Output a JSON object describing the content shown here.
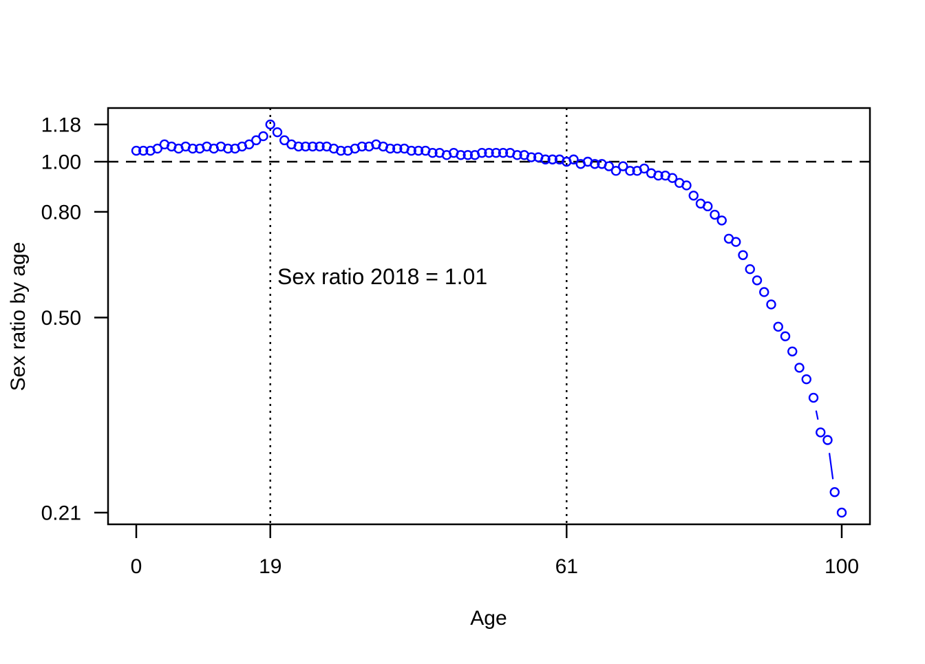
{
  "figure": {
    "background": "#ffffff",
    "foreground": "#000000"
  },
  "chart_data": {
    "type": "scatter",
    "title": "",
    "xlabel": "Age",
    "ylabel": "Sex ratio by age",
    "x_scale": "linear",
    "y_scale": "log",
    "xlim": [
      0,
      100
    ],
    "ylim": [
      0.21,
      1.18
    ],
    "grid": "off",
    "legend": "none",
    "marker": "open-circle",
    "plot_type_r": "b (points joined by line segments where points are far apart)",
    "point_color": "#0000FF",
    "axis_color": "#000000",
    "x_ticks": [
      {
        "value": 0,
        "label": "0"
      },
      {
        "value": 19,
        "label": "19"
      },
      {
        "value": 61,
        "label": "61"
      },
      {
        "value": 100,
        "label": "100"
      }
    ],
    "y_ticks": [
      {
        "value": 1.18,
        "label": "1.18"
      },
      {
        "value": 1.0,
        "label": "1.00"
      },
      {
        "value": 0.8,
        "label": "0.80"
      },
      {
        "value": 0.5,
        "label": "0.50"
      },
      {
        "value": 0.21,
        "label": "0.21"
      }
    ],
    "reference_lines": {
      "horizontal": [
        {
          "value": 1.0,
          "style": "dashed",
          "color": "#000000"
        }
      ],
      "vertical": [
        {
          "value": 19,
          "style": "dotted",
          "color": "#000000"
        },
        {
          "value": 61,
          "style": "dotted",
          "color": "#000000"
        }
      ]
    },
    "annotation": {
      "text": "Sex ratio 2018 = 1.01",
      "x": 20,
      "y": 0.58,
      "align": "left"
    },
    "series_name": "sex-ratio-by-age",
    "x": [
      0,
      1,
      2,
      3,
      4,
      5,
      6,
      7,
      8,
      9,
      10,
      11,
      12,
      13,
      14,
      15,
      16,
      17,
      18,
      19,
      20,
      21,
      22,
      23,
      24,
      25,
      26,
      27,
      28,
      29,
      30,
      31,
      32,
      33,
      34,
      35,
      36,
      37,
      38,
      39,
      40,
      41,
      42,
      43,
      44,
      45,
      46,
      47,
      48,
      49,
      50,
      51,
      52,
      53,
      54,
      55,
      56,
      57,
      58,
      59,
      60,
      61,
      62,
      63,
      64,
      65,
      66,
      67,
      68,
      69,
      70,
      71,
      72,
      73,
      74,
      75,
      76,
      77,
      78,
      79,
      80,
      81,
      82,
      83,
      84,
      85,
      86,
      87,
      88,
      89,
      90,
      91,
      92,
      93,
      94,
      95,
      96,
      97,
      98,
      99,
      100
    ],
    "y": [
      1.05,
      1.05,
      1.05,
      1.06,
      1.08,
      1.07,
      1.06,
      1.07,
      1.06,
      1.06,
      1.07,
      1.06,
      1.07,
      1.06,
      1.06,
      1.07,
      1.08,
      1.1,
      1.12,
      1.18,
      1.14,
      1.1,
      1.08,
      1.07,
      1.07,
      1.07,
      1.07,
      1.07,
      1.06,
      1.05,
      1.05,
      1.06,
      1.07,
      1.07,
      1.08,
      1.07,
      1.06,
      1.06,
      1.06,
      1.05,
      1.05,
      1.05,
      1.04,
      1.04,
      1.03,
      1.04,
      1.03,
      1.03,
      1.03,
      1.04,
      1.04,
      1.04,
      1.04,
      1.04,
      1.03,
      1.03,
      1.02,
      1.02,
      1.01,
      1.01,
      1.01,
      1.0,
      1.01,
      0.99,
      1.0,
      0.99,
      0.99,
      0.98,
      0.96,
      0.98,
      0.96,
      0.96,
      0.97,
      0.95,
      0.94,
      0.94,
      0.93,
      0.91,
      0.9,
      0.86,
      0.83,
      0.82,
      0.79,
      0.77,
      0.71,
      0.7,
      0.66,
      0.62,
      0.59,
      0.56,
      0.53,
      0.48,
      0.46,
      0.43,
      0.4,
      0.38,
      0.35,
      0.3,
      0.29,
      0.23,
      0.21
    ]
  }
}
